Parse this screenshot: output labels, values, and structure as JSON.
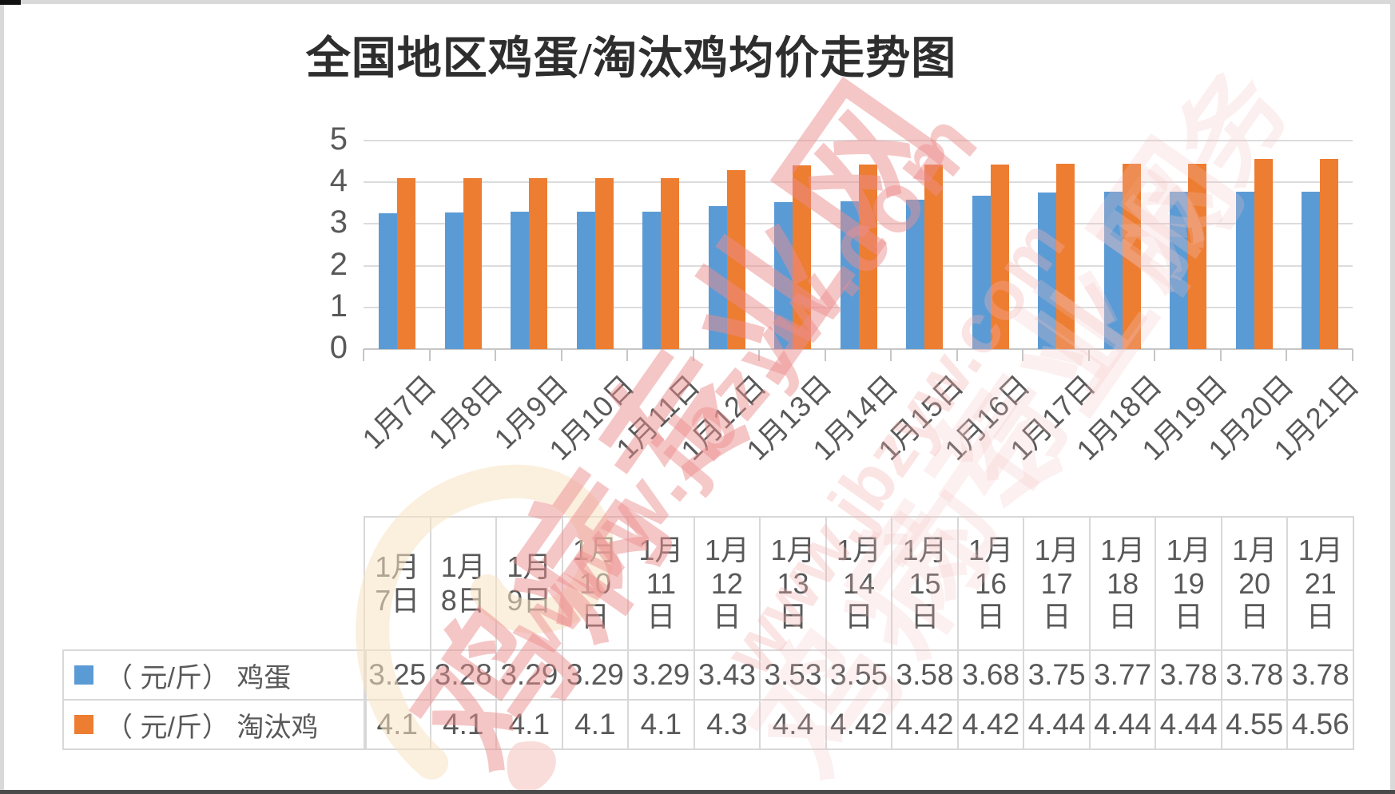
{
  "title": "全国地区鸡蛋/淘汰鸡均价走势图",
  "watermark": {
    "brand": "鸡病专业网",
    "url": "www.jbzyw.com",
    "slogan": "为行业服务"
  },
  "colors": {
    "egg": "#5B9BD5",
    "chicken": "#ED7D31",
    "axis_text": "#595959",
    "grid": "#DCDCDC",
    "watermark_pink": "#EC8E8E"
  },
  "chart_data": {
    "type": "bar",
    "title": "全国地区鸡蛋/淘汰鸡均价走势图",
    "categories": [
      "1月7日",
      "1月8日",
      "1月9日",
      "1月10日",
      "1月11日",
      "1月12日",
      "1月13日",
      "1月14日",
      "1月15日",
      "1月16日",
      "1月17日",
      "1月18日",
      "1月19日",
      "1月20日",
      "1月21日"
    ],
    "series": [
      {
        "name": "（ 元/斤） 鸡蛋",
        "color": "#5B9BD5",
        "values": [
          3.25,
          3.28,
          3.29,
          3.29,
          3.29,
          3.43,
          3.53,
          3.55,
          3.58,
          3.68,
          3.75,
          3.77,
          3.78,
          3.78,
          3.78
        ]
      },
      {
        "name": "（ 元/斤） 淘汰鸡",
        "color": "#ED7D31",
        "values": [
          4.1,
          4.1,
          4.1,
          4.1,
          4.1,
          4.3,
          4.4,
          4.42,
          4.42,
          4.42,
          4.44,
          4.44,
          4.44,
          4.55,
          4.56
        ]
      }
    ],
    "ylim": [
      0,
      5
    ],
    "y_ticks": [
      0,
      1,
      2,
      3,
      4,
      5
    ],
    "grid": true,
    "x_label_rotation": -45,
    "legend_position": "table-rows-left",
    "has_data_table": true
  }
}
